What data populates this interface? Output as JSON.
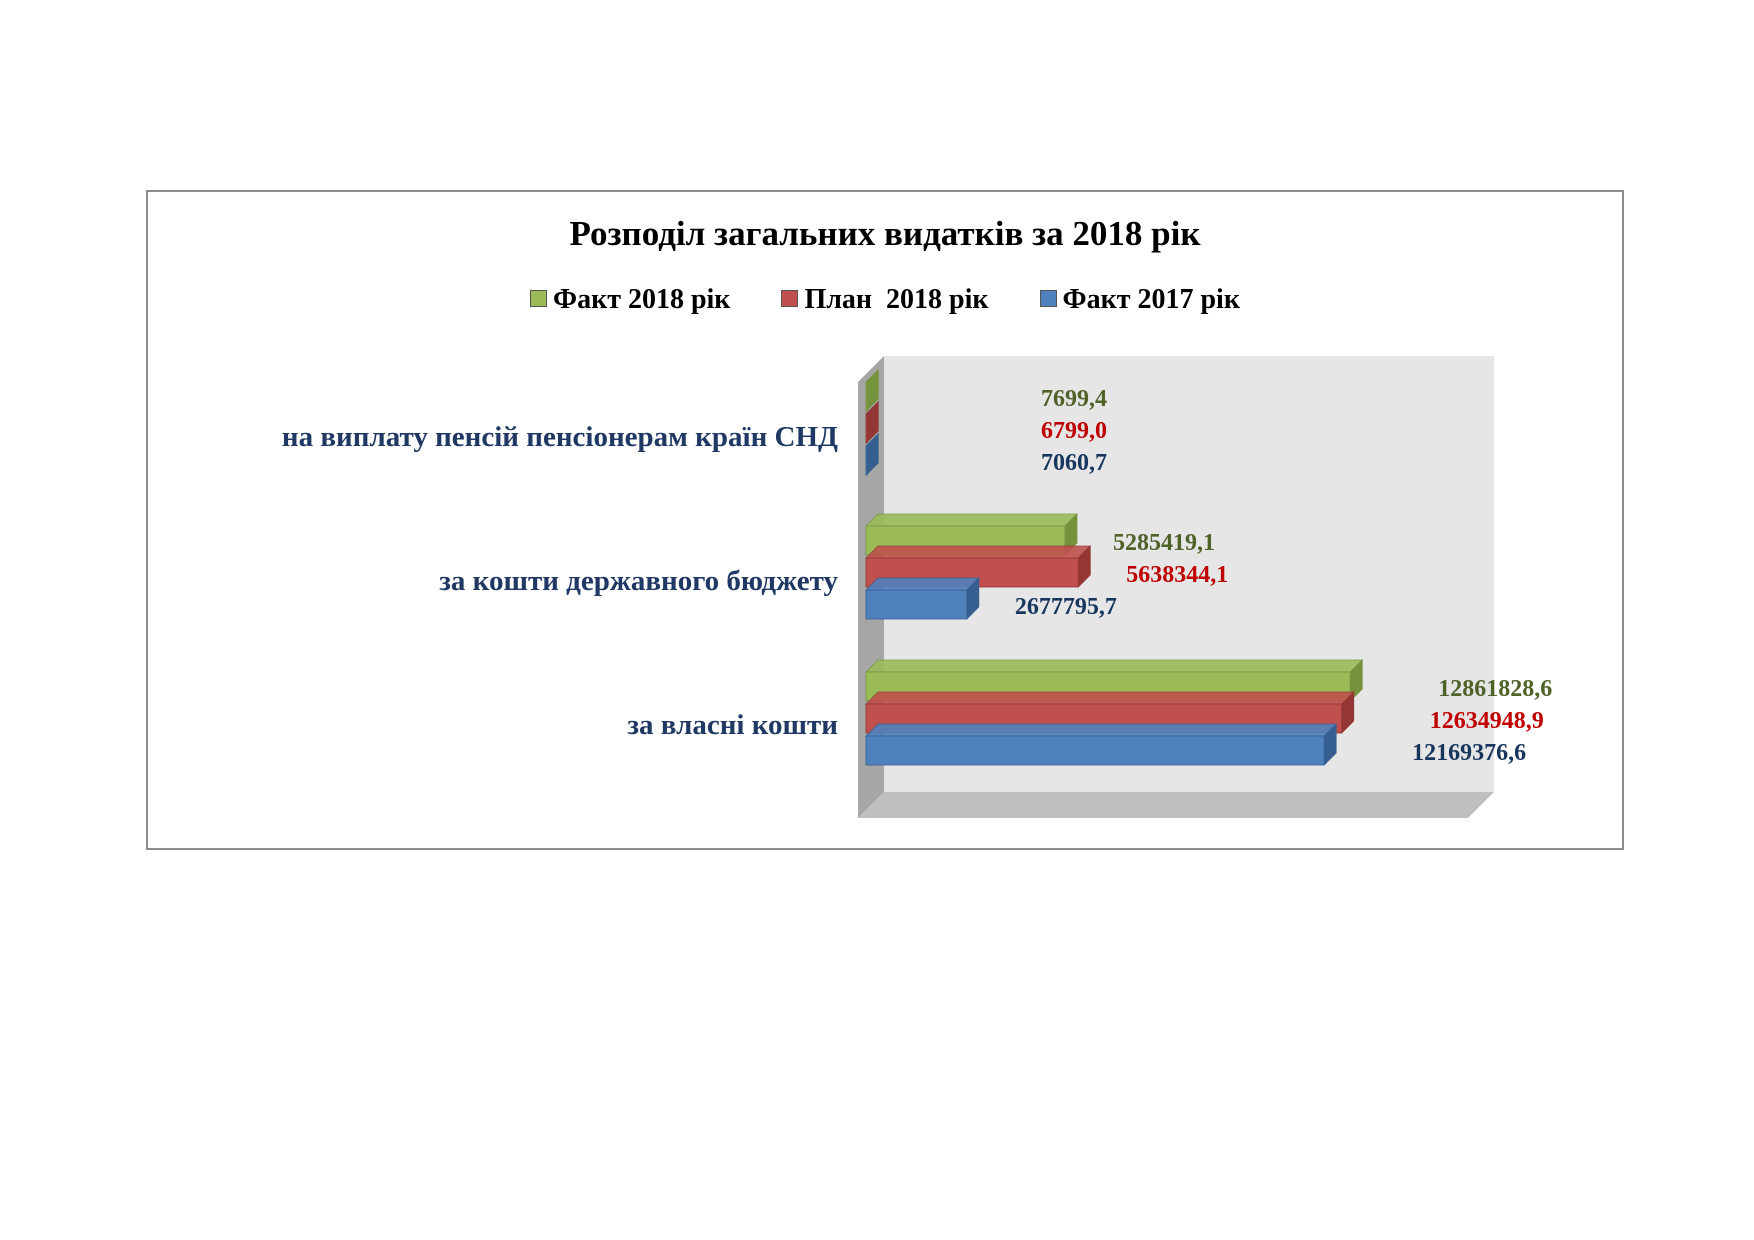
{
  "chart_data": {
    "type": "bar",
    "orientation": "horizontal",
    "title": "Розподіл загальних видатків за 2018 рік",
    "categories": [
      "на виплату пенсій пенсіонерам країн СНД",
      "за кошти державного бюджету",
      "за власні кошти"
    ],
    "series": [
      {
        "name": "Факт 2018 рік",
        "color": "#9bbb59",
        "side": "#76923c",
        "label_color": "#4f6228",
        "values": [
          7699.4,
          5285419.1,
          12861828.6
        ],
        "labels": [
          "7699,4",
          "5285419,1",
          "12861828,6"
        ]
      },
      {
        "name": "План  2018 рік",
        "color": "#c0504d",
        "side": "#943634",
        "label_color": "#c00000",
        "values": [
          6799.0,
          5638344.1,
          12634948.9
        ],
        "labels": [
          "6799,0",
          "5638344,1",
          "12634948,9"
        ]
      },
      {
        "name": "Факт 2017 рік",
        "color": "#4f81bd",
        "side": "#365f91",
        "label_color": "#17365d",
        "values": [
          7060.7,
          2677795.7,
          12169376.6
        ],
        "labels": [
          "7060,7",
          "2677795,7",
          "12169376,6"
        ]
      }
    ],
    "legend_position": "top",
    "category_label_color": "#1f3864",
    "gridlines": false,
    "xlim": [
      0,
      14000000
    ]
  }
}
